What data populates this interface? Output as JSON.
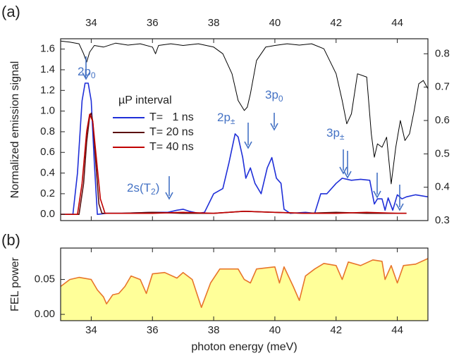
{
  "chart_data": [
    {
      "type": "line",
      "panel_label": "(a)",
      "ylabel": "Normalized emission signal",
      "xlim": [
        33,
        45
      ],
      "xticks": [
        34,
        36,
        38,
        40,
        42,
        44
      ],
      "ylim": [
        -0.06,
        1.7
      ],
      "yticks": [
        {
          "value": 0,
          "label": "0.0"
        },
        0.2,
        0.4,
        0.6,
        0.8,
        {
          "value": 1,
          "label": "1.0"
        },
        1.2,
        1.4,
        1.6
      ],
      "y2lim": [
        0.3,
        0.845
      ],
      "y2ticks": [
        0.3,
        0.4,
        0.5,
        0.6,
        0.7,
        0.8
      ],
      "legend_title": "µP interval",
      "annotations": [
        {
          "text": "2p",
          "sub": "0"
        },
        {
          "text": "2p",
          "sub": "±"
        },
        {
          "text": "3p",
          "sub": "0"
        },
        {
          "text": "3p",
          "sub": "±"
        },
        {
          "text": "2s(T",
          "sub": "2",
          "tail": ")"
        }
      ],
      "series": [
        {
          "color": "#000000",
          "axis": "y2",
          "x": [
            33,
            33.3,
            33.6,
            33.75,
            33.85,
            33.95,
            34.1,
            34.4,
            34.8,
            35.2,
            35.6,
            36.0,
            36.1,
            36.2,
            36.6,
            37,
            37.5,
            38,
            38.3,
            38.6,
            38.8,
            39.0,
            39.1,
            39.2,
            39.4,
            39.7,
            40,
            40.4,
            40.8,
            41.2,
            41.6,
            42.0,
            42.2,
            42.35,
            42.5,
            42.7,
            43.0,
            43.15,
            43.25,
            43.35,
            43.5,
            43.65,
            43.8,
            43.95,
            44.1,
            44.25,
            44.4,
            44.55,
            44.7,
            44.85,
            45
          ],
          "values": [
            0.838,
            0.835,
            0.83,
            0.8,
            0.775,
            0.805,
            0.825,
            0.82,
            0.832,
            0.826,
            0.83,
            0.82,
            0.8,
            0.825,
            0.83,
            0.825,
            0.83,
            0.82,
            0.8,
            0.74,
            0.66,
            0.63,
            0.64,
            0.68,
            0.78,
            0.82,
            0.825,
            0.83,
            0.826,
            0.83,
            0.815,
            0.74,
            0.66,
            0.59,
            0.62,
            0.74,
            0.73,
            0.56,
            0.49,
            0.53,
            0.52,
            0.55,
            0.41,
            0.52,
            0.6,
            0.54,
            0.56,
            0.63,
            0.71,
            0.72,
            0.695
          ]
        },
        {
          "name": "T=   1 ns",
          "color": "#1f2fd8",
          "x": [
            33,
            33.4,
            33.55,
            33.7,
            33.8,
            33.9,
            34.0,
            34.1,
            34.2,
            34.5,
            35,
            36,
            36.5,
            36.8,
            37.0,
            37.2,
            37.5,
            37.7,
            38.0,
            38.3,
            38.5,
            38.7,
            38.8,
            38.95,
            39.05,
            39.2,
            39.35,
            39.55,
            39.75,
            39.9,
            40.05,
            40.2,
            40.3,
            40.5,
            41.0,
            41.3,
            41.5,
            41.7,
            42.0,
            42.2,
            42.5,
            42.8,
            43.1,
            43.25,
            43.35,
            43.5,
            43.6,
            43.7,
            43.85,
            44.0,
            44.15,
            44.3,
            44.6,
            45
          ],
          "values": [
            0,
            0,
            0.4,
            1.1,
            1.27,
            1.27,
            1.1,
            0.5,
            0,
            0.01,
            0.01,
            0.02,
            0.02,
            0.04,
            0.05,
            0.03,
            0.01,
            0.02,
            0.2,
            0.25,
            0.5,
            0.78,
            0.75,
            0.55,
            0.35,
            0.45,
            0.3,
            0.2,
            0.45,
            0.55,
            0.35,
            0.3,
            0.05,
            0.01,
            0.02,
            0.01,
            0.2,
            0.2,
            0.3,
            0.35,
            0.33,
            0.34,
            0.33,
            0.1,
            0.15,
            0.15,
            0.04,
            0.16,
            0.04,
            0.19,
            0.15,
            0.17,
            0.19,
            0.17
          ]
        },
        {
          "name": "T= 20 ns",
          "color": "#5a1010",
          "x": [
            33,
            33.6,
            33.75,
            33.85,
            33.95,
            34.0,
            34.05,
            34.15,
            34.25,
            34.35,
            35,
            36,
            37,
            38,
            39,
            40,
            41,
            42,
            43,
            44,
            44.3
          ],
          "values": [
            0,
            0,
            0.3,
            0.7,
            0.95,
            0.98,
            0.9,
            0.5,
            0.1,
            0.01,
            0.01,
            0.02,
            0.01,
            0.01,
            0.03,
            0.02,
            0.01,
            0.02,
            0.01,
            0.01,
            0.01
          ]
        },
        {
          "name": "T= 40 ns",
          "color": "#c00000",
          "x": [
            33,
            33.55,
            33.7,
            33.85,
            33.95,
            34.05,
            34.15,
            34.3,
            34.45,
            35,
            36,
            37,
            38,
            39,
            40,
            41,
            42,
            43,
            44,
            44.3
          ],
          "values": [
            0,
            0,
            0.3,
            0.8,
            0.97,
            0.9,
            0.6,
            0.15,
            0.01,
            0.01,
            0.01,
            0.02,
            0.01,
            0.03,
            0.02,
            0.01,
            0.01,
            0.02,
            0.01,
            0.01
          ]
        }
      ]
    },
    {
      "type": "area",
      "panel_label": "(b)",
      "ylabel": "FEL power",
      "xlabel": "photon energy (meV)",
      "xlim": [
        33,
        45
      ],
      "xticks": [
        34,
        36,
        38,
        40,
        42,
        44
      ],
      "ylim": [
        -0.009,
        0.095
      ],
      "yticks": [
        {
          "value": 0,
          "label": "0.00"
        },
        {
          "value": 0.05,
          "label": "0.05"
        }
      ],
      "series": [
        {
          "color": "#e8742a",
          "fill": "#ffff99",
          "x": [
            33,
            33.3,
            33.6,
            34,
            34.2,
            34.4,
            34.5,
            34.7,
            34.9,
            35.1,
            35.3,
            35.6,
            35.8,
            36.0,
            36.4,
            36.8,
            37.0,
            37.3,
            37.6,
            37.9,
            38.2,
            38.8,
            39.0,
            39.2,
            39.4,
            40.0,
            40.15,
            40.3,
            40.6,
            40.8,
            41.0,
            41.3,
            41.6,
            42.0,
            42.2,
            42.4,
            42.8,
            43.2,
            43.5,
            43.6,
            43.8,
            44.0,
            44.2,
            44.6,
            45
          ],
          "values": [
            0.04,
            0.05,
            0.053,
            0.05,
            0.035,
            0.025,
            0.015,
            0.028,
            0.03,
            0.04,
            0.055,
            0.05,
            0.03,
            0.058,
            0.06,
            0.052,
            0.06,
            0.05,
            0.01,
            0.045,
            0.065,
            0.065,
            0.05,
            0.045,
            0.065,
            0.068,
            0.045,
            0.068,
            0.04,
            0.02,
            0.055,
            0.065,
            0.073,
            0.07,
            0.05,
            0.075,
            0.07,
            0.078,
            0.076,
            0.05,
            0.07,
            0.045,
            0.07,
            0.072,
            0.08
          ]
        }
      ]
    }
  ]
}
